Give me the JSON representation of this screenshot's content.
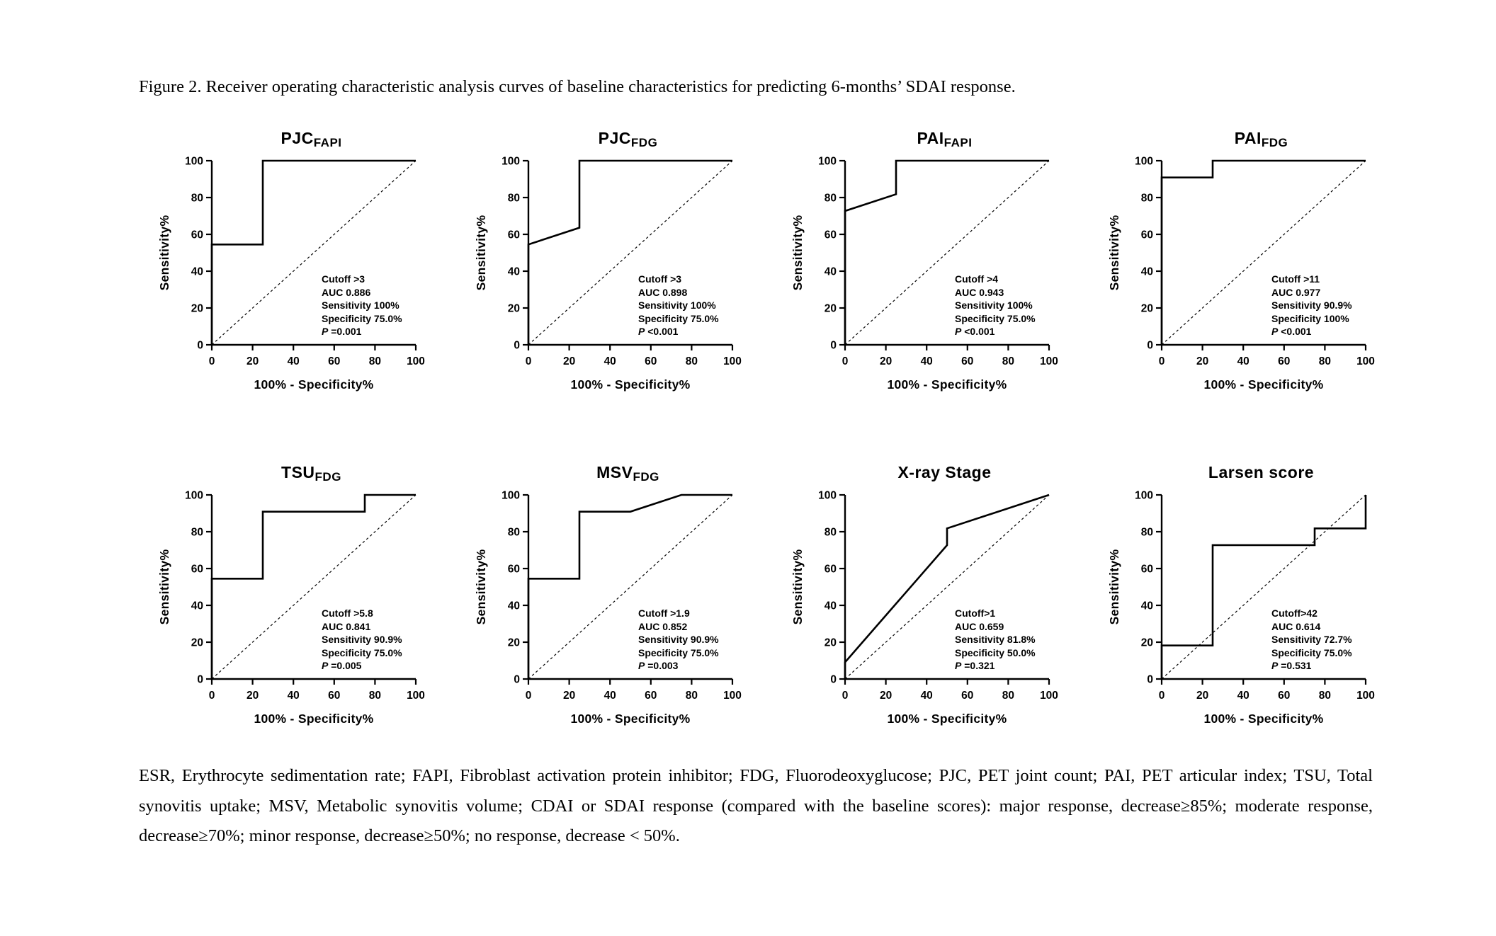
{
  "figure": {
    "caption": "Figure 2. Receiver operating characteristic analysis curves of baseline characteristics for predicting 6-months’ SDAI response.",
    "footnote": "ESR, Erythrocyte sedimentation rate; FAPI, Fibroblast activation protein inhibitor; FDG, Fluorodeoxyglucose; PJC, PET joint count; PAI, PET articular index; TSU, Total synovitis uptake; MSV, Metabolic synovitis volume; CDAI or SDAI response (compared with the baseline scores): major response, decrease≥85%; moderate response, decrease≥70%; minor response, decrease≥50%; no response, decrease < 50%."
  },
  "colors": {
    "line": "#000000",
    "text": "#000000",
    "background": "#ffffff"
  },
  "chart_data": [
    {
      "type": "line",
      "title_main": "PJC",
      "title_sub": "FAPI",
      "xlabel": "100% - Specificity%",
      "ylabel": "Sensitivity%",
      "xlim": [
        0,
        100
      ],
      "ylim": [
        0,
        100
      ],
      "xticks": [
        0,
        20,
        40,
        60,
        80,
        100
      ],
      "yticks": [
        0,
        20,
        40,
        60,
        80,
        100
      ],
      "grid": false,
      "diagonal": true,
      "roc_points": [
        [
          0,
          0
        ],
        [
          0,
          54.5
        ],
        [
          25,
          54.5
        ],
        [
          25,
          100
        ],
        [
          100,
          100
        ]
      ],
      "annotation": {
        "cutoff": "Cutoff >3",
        "auc": "AUC 0.886",
        "sensitivity": "Sensitivity 100%",
        "specificity": "Specificity 75.0%",
        "p_label": "P",
        "p_value": " =0.001"
      }
    },
    {
      "type": "line",
      "title_main": "PJC",
      "title_sub": "FDG",
      "xlabel": "100% - Specificity%",
      "ylabel": "Sensitivity%",
      "xlim": [
        0,
        100
      ],
      "ylim": [
        0,
        100
      ],
      "xticks": [
        0,
        20,
        40,
        60,
        80,
        100
      ],
      "yticks": [
        0,
        20,
        40,
        60,
        80,
        100
      ],
      "grid": false,
      "diagonal": true,
      "roc_points": [
        [
          0,
          0
        ],
        [
          0,
          54.5
        ],
        [
          25,
          63.6
        ],
        [
          25,
          100
        ],
        [
          100,
          100
        ]
      ],
      "annotation": {
        "cutoff": "Cutoff >3",
        "auc": "AUC 0.898",
        "sensitivity": "Sensitivity 100%",
        "specificity": "Specificity 75.0%",
        "p_label": "P",
        "p_value": " <0.001"
      }
    },
    {
      "type": "line",
      "title_main": "PAI",
      "title_sub": "FAPI",
      "xlabel": "100% - Specificity%",
      "ylabel": "Sensitivity%",
      "xlim": [
        0,
        100
      ],
      "ylim": [
        0,
        100
      ],
      "xticks": [
        0,
        20,
        40,
        60,
        80,
        100
      ],
      "yticks": [
        0,
        20,
        40,
        60,
        80,
        100
      ],
      "grid": false,
      "diagonal": true,
      "roc_points": [
        [
          0,
          0
        ],
        [
          0,
          72.7
        ],
        [
          25,
          81.8
        ],
        [
          25,
          100
        ],
        [
          100,
          100
        ]
      ],
      "annotation": {
        "cutoff": "Cutoff >4",
        "auc": "AUC 0.943",
        "sensitivity": "Sensitivity 100%",
        "specificity": "Specificity 75.0%",
        "p_label": "P",
        "p_value": " <0.001"
      }
    },
    {
      "type": "line",
      "title_main": "PAI",
      "title_sub": "FDG",
      "xlabel": "100% - Specificity%",
      "ylabel": "Sensitivity%",
      "xlim": [
        0,
        100
      ],
      "ylim": [
        0,
        100
      ],
      "xticks": [
        0,
        20,
        40,
        60,
        80,
        100
      ],
      "yticks": [
        0,
        20,
        40,
        60,
        80,
        100
      ],
      "grid": false,
      "diagonal": true,
      "roc_points": [
        [
          0,
          0
        ],
        [
          0,
          90.9
        ],
        [
          25,
          90.9
        ],
        [
          25,
          100
        ],
        [
          100,
          100
        ]
      ],
      "annotation": {
        "cutoff": "Cutoff >11",
        "auc": "AUC 0.977",
        "sensitivity": "Sensitivity 90.9%",
        "specificity": "Specificity 100%",
        "p_label": "P",
        "p_value": " <0.001"
      }
    },
    {
      "type": "line",
      "title_main": "TSU",
      "title_sub": "FDG",
      "xlabel": "100% - Specificity%",
      "ylabel": "Sensitivity%",
      "xlim": [
        0,
        100
      ],
      "ylim": [
        0,
        100
      ],
      "xticks": [
        0,
        20,
        40,
        60,
        80,
        100
      ],
      "yticks": [
        0,
        20,
        40,
        60,
        80,
        100
      ],
      "grid": false,
      "diagonal": true,
      "roc_points": [
        [
          0,
          0
        ],
        [
          0,
          54.5
        ],
        [
          25,
          54.5
        ],
        [
          25,
          90.9
        ],
        [
          75,
          90.9
        ],
        [
          75,
          100
        ],
        [
          100,
          100
        ]
      ],
      "annotation": {
        "cutoff": "Cutoff >5.8",
        "auc": "AUC 0.841",
        "sensitivity": "Sensitivity 90.9%",
        "specificity": "Specificity 75.0%",
        "p_label": "P",
        "p_value": " =0.005"
      }
    },
    {
      "type": "line",
      "title_main": "MSV",
      "title_sub": "FDG",
      "xlabel": "100% - Specificity%",
      "ylabel": "Sensitivity%",
      "xlim": [
        0,
        100
      ],
      "ylim": [
        0,
        100
      ],
      "xticks": [
        0,
        20,
        40,
        60,
        80,
        100
      ],
      "yticks": [
        0,
        20,
        40,
        60,
        80,
        100
      ],
      "grid": false,
      "diagonal": true,
      "roc_points": [
        [
          0,
          0
        ],
        [
          0,
          54.5
        ],
        [
          25,
          54.5
        ],
        [
          25,
          90.9
        ],
        [
          50,
          90.9
        ],
        [
          75,
          100
        ],
        [
          100,
          100
        ]
      ],
      "annotation": {
        "cutoff": "Cutoff >1.9",
        "auc": "AUC 0.852",
        "sensitivity": "Sensitivity 90.9%",
        "specificity": "Specificity 75.0%",
        "p_label": "P",
        "p_value": " =0.003"
      }
    },
    {
      "type": "line",
      "title_main": "X-ray Stage",
      "title_sub": "",
      "xlabel": "100% - Specificity%",
      "ylabel": "Sensitivity%",
      "xlim": [
        0,
        100
      ],
      "ylim": [
        0,
        100
      ],
      "xticks": [
        0,
        20,
        40,
        60,
        80,
        100
      ],
      "yticks": [
        0,
        20,
        40,
        60,
        80,
        100
      ],
      "grid": false,
      "diagonal": true,
      "roc_points": [
        [
          0,
          0
        ],
        [
          0,
          9.1
        ],
        [
          50,
          72.7
        ],
        [
          50,
          81.8
        ],
        [
          100,
          100
        ]
      ],
      "annotation": {
        "cutoff": "Cutoff>1",
        "auc": "AUC 0.659",
        "sensitivity": "Sensitivity 81.8%",
        "specificity": "Specificity 50.0%",
        "p_label": "P",
        "p_value": " =0.321"
      }
    },
    {
      "type": "line",
      "title_main": "Larsen score",
      "title_sub": "",
      "xlabel": "100% - Specificity%",
      "ylabel": "Sensitivity%",
      "xlim": [
        0,
        100
      ],
      "ylim": [
        0,
        100
      ],
      "xticks": [
        0,
        20,
        40,
        60,
        80,
        100
      ],
      "yticks": [
        0,
        20,
        40,
        60,
        80,
        100
      ],
      "grid": false,
      "diagonal": true,
      "roc_points": [
        [
          0,
          0
        ],
        [
          0,
          18.2
        ],
        [
          25,
          18.2
        ],
        [
          25,
          72.7
        ],
        [
          75,
          72.7
        ],
        [
          75,
          81.8
        ],
        [
          100,
          81.8
        ],
        [
          100,
          100
        ]
      ],
      "annotation": {
        "cutoff": "Cutoff>42",
        "auc": "AUC 0.614",
        "sensitivity": "Sensitivity 72.7%",
        "specificity": "Specificity 75.0%",
        "p_label": "P",
        "p_value": " =0.531"
      }
    }
  ]
}
